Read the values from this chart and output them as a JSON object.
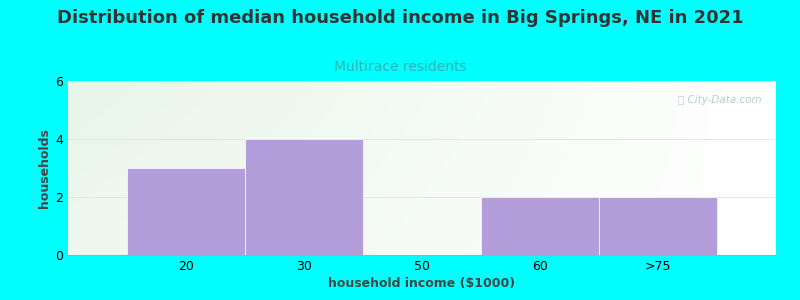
{
  "title": "Distribution of median household income in Big Springs, NE in 2021",
  "subtitle": "Multirace residents",
  "xlabel": "household income ($1000)",
  "ylabel": "households",
  "background_color": "#00FFFF",
  "bar_color": "#b39ddb",
  "bar_edge_color": "#ffffff",
  "categories": [
    "20",
    "30",
    "50",
    "60",
    ">75"
  ],
  "values": [
    3,
    4,
    0,
    2,
    2
  ],
  "ylim": [
    0,
    6
  ],
  "yticks": [
    0,
    2,
    4,
    6
  ],
  "title_fontsize": 13,
  "subtitle_fontsize": 10,
  "subtitle_color": "#2ab5b0",
  "title_color": "#333333",
  "axis_label_fontsize": 9,
  "tick_fontsize": 9,
  "watermark_text": "ⓘ City-Data.com",
  "watermark_color": "#aac8c8",
  "grid_color": "#dddddd",
  "bar_left_edges": [
    0,
    1,
    2,
    3,
    4
  ],
  "bar_width": 1.0,
  "xlim": [
    -0.5,
    5.5
  ],
  "xtick_positions": [
    0.5,
    1.5,
    2.5,
    3.5,
    4.5
  ]
}
